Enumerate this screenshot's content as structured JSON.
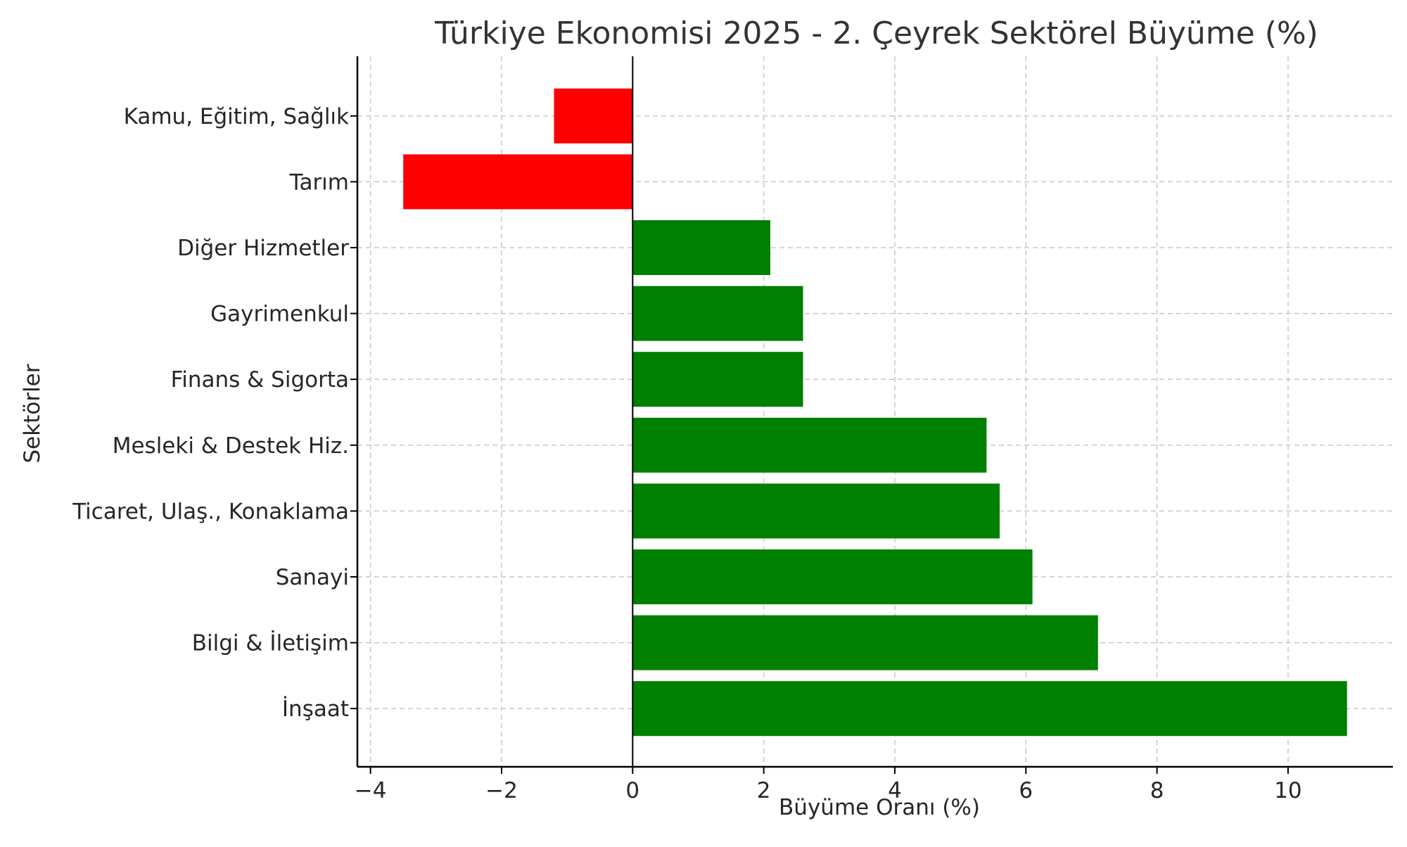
{
  "chart_data": {
    "type": "bar",
    "orientation": "horizontal",
    "title": "Türkiye Ekonomisi 2025 - 2. Çeyrek Sektörel Büyüme (%)",
    "xlabel": "Büyüme Oranı (%)",
    "ylabel": "Sektörler",
    "categories": [
      "Kamu, Eğitim, Sağlık",
      "Tarım",
      "Diğer Hizmetler",
      "Gayrimenkul",
      "Finans & Sigorta",
      "Mesleki & Destek Hiz.",
      "Ticaret, Ulaş., Konaklama",
      "Sanayi",
      "Bilgi & İletişim",
      "İnşaat"
    ],
    "values": [
      -1.2,
      -3.5,
      2.1,
      2.6,
      2.6,
      5.4,
      5.6,
      6.1,
      7.1,
      10.9
    ],
    "xlim": [
      -4.2,
      11.6
    ],
    "xticks": [
      -4,
      -2,
      0,
      2,
      4,
      6,
      8,
      10
    ],
    "xtick_labels": [
      "−4",
      "−2",
      "0",
      "2",
      "4",
      "6",
      "8",
      "10"
    ],
    "grid": true,
    "colors": {
      "positive": "#008000",
      "negative": "#ff0000",
      "grid": "#c8c8c8",
      "zero_line": "#000000"
    }
  }
}
